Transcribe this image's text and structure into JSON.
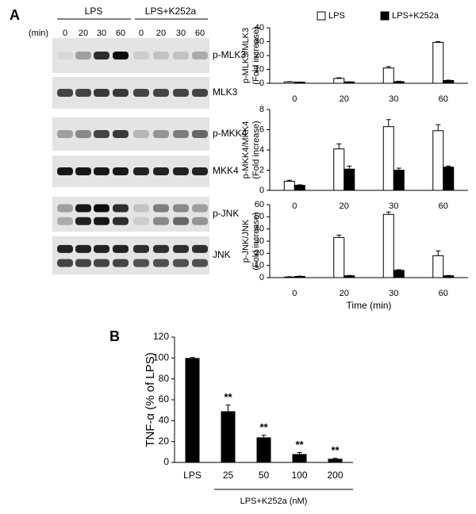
{
  "panels": {
    "a": "A",
    "b": "B"
  },
  "blot": {
    "unit": "(min)",
    "groups": [
      "LPS",
      "LPS+K252a"
    ],
    "lanes": [
      "0",
      "20",
      "30",
      "60",
      "0",
      "20",
      "30",
      "60"
    ],
    "rows": [
      "p-MLK3",
      "MLK3",
      "p-MKK4",
      "MKK4",
      "p-JNK",
      "JNK"
    ]
  },
  "chart_data": [
    {
      "type": "grouped-bar",
      "ylabel": [
        "p-MLK3/MLK3",
        "(Fold increase)"
      ],
      "categories": [
        "0",
        "20",
        "30",
        "60"
      ],
      "ylim": [
        0,
        40
      ],
      "yticks": [
        0,
        10,
        20,
        30,
        40
      ],
      "legend": "top",
      "series": [
        {
          "name": "LPS",
          "color": "#ffffff",
          "values": [
            1,
            3.5,
            11,
            29.5
          ],
          "errors": [
            0.2,
            0.5,
            1,
            0.5
          ]
        },
        {
          "name": "LPS+K252a",
          "color": "#000000",
          "values": [
            0.8,
            1,
            1.2,
            2
          ],
          "errors": [
            0.1,
            0.1,
            0.3,
            0.3
          ]
        }
      ]
    },
    {
      "type": "grouped-bar",
      "ylabel": [
        "p-MKK4/MKK4",
        "(Fold increase)"
      ],
      "categories": [
        "0",
        "20",
        "30",
        "60"
      ],
      "ylim": [
        0,
        8
      ],
      "yticks": [
        0,
        2,
        4,
        6,
        8
      ],
      "series": [
        {
          "name": "LPS",
          "color": "#ffffff",
          "values": [
            0.9,
            4.1,
            6.3,
            5.9
          ],
          "errors": [
            0.1,
            0.5,
            0.7,
            0.6
          ]
        },
        {
          "name": "LPS+K252a",
          "color": "#000000",
          "values": [
            0.5,
            2.1,
            2.0,
            2.3
          ],
          "errors": [
            0.05,
            0.3,
            0.2,
            0.1
          ]
        }
      ]
    },
    {
      "type": "grouped-bar",
      "ylabel": [
        "p-JNK/JNK",
        "(Fold increase)"
      ],
      "xlabel": "Time (min)",
      "categories": [
        "0",
        "20",
        "30",
        "60"
      ],
      "ylim": [
        0,
        60
      ],
      "yticks": [
        0,
        10,
        20,
        30,
        40,
        50,
        60
      ],
      "series": [
        {
          "name": "LPS",
          "color": "#ffffff",
          "values": [
            0.5,
            33,
            52,
            18
          ],
          "errors": [
            0.2,
            2,
            2,
            4
          ]
        },
        {
          "name": "LPS+K252a",
          "color": "#000000",
          "values": [
            1,
            1.5,
            6,
            1.5
          ],
          "errors": [
            0.2,
            0.3,
            0.5,
            0.3
          ]
        }
      ]
    },
    {
      "type": "bar",
      "ylabel": "TNF-α (% of LPS)",
      "group_label": "LPS+K252a (nM)",
      "categories": [
        "LPS",
        "25",
        "50",
        "100",
        "200"
      ],
      "values": [
        100,
        49,
        24,
        8,
        3.5
      ],
      "errors": [
        0.5,
        6,
        2,
        1.5,
        0.5
      ],
      "color": "#000000",
      "ylim": [
        0,
        120
      ],
      "yticks": [
        0,
        20,
        40,
        60,
        80,
        100,
        120
      ],
      "annotations": [
        {
          "index": 1,
          "text": "**"
        },
        {
          "index": 2,
          "text": "**"
        },
        {
          "index": 3,
          "text": "**"
        },
        {
          "index": 4,
          "text": "**"
        }
      ]
    }
  ]
}
